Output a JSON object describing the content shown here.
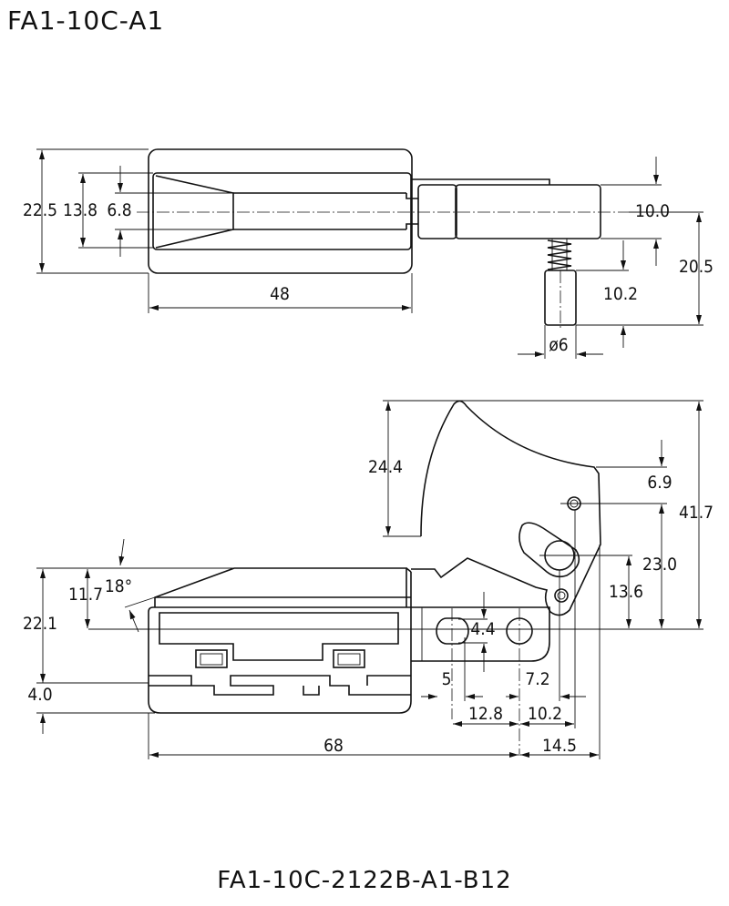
{
  "title": "FA1-10C-A1",
  "subtitle": "FA1-10C-2122B-A1-B12",
  "top_view": {
    "dims": {
      "overall_height": "22.5",
      "inner_height": "13.8",
      "slot_height": "6.8",
      "length": "48",
      "actuator_height": "10.0",
      "plunger_offset": "20.5",
      "plunger_length": "10.2",
      "plunger_diameter": "ø6"
    }
  },
  "side_view": {
    "dims": {
      "trigger_height": "24.4",
      "pivot_offset": "6.9",
      "overall_height": "41.7",
      "pivot_height": "23.0",
      "lower_pin_height": "13.6",
      "body_height": "22.1",
      "top_height": "11.7",
      "angle": "18°",
      "base_height": "4.0",
      "hole_offset": "4.4",
      "hole_width": "5",
      "hole_spacing": "7.2",
      "hole_distance": "12.8",
      "pin_distance": "10.2",
      "length": "68",
      "trigger_extension": "14.5"
    }
  }
}
